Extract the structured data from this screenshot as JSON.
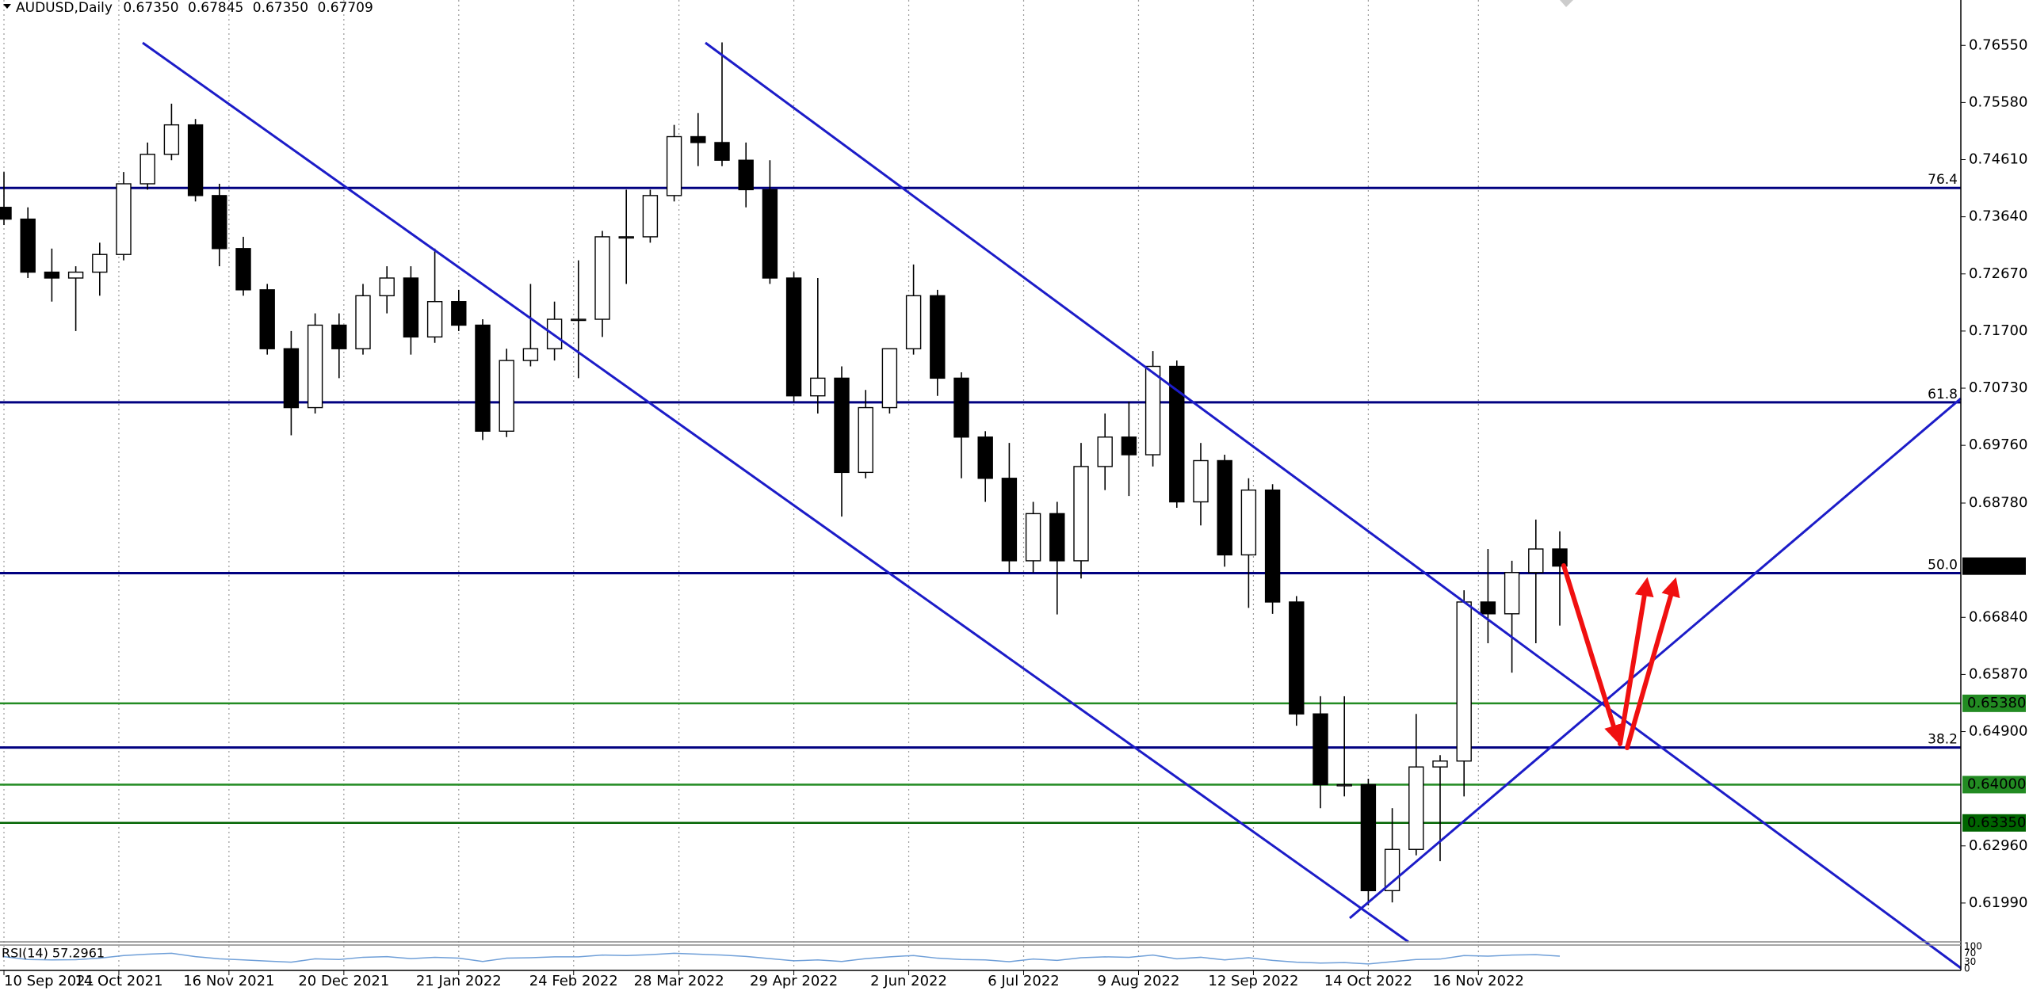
{
  "chart_data": {
    "type": "candlestick",
    "title": "AUDUSD,Daily",
    "ohlc": [
      {
        "value": 0.6735,
        "label": "0.67350"
      },
      {
        "value": 0.67845,
        "label": "0.67845"
      },
      {
        "value": 0.6735,
        "label": "0.67350"
      },
      {
        "value": 0.67709,
        "label": "0.67709"
      }
    ],
    "x": [
      "2021-09-10",
      "2021-09-17",
      "2021-09-24",
      "2021-10-01",
      "2021-10-08",
      "2021-10-15",
      "2021-10-22",
      "2021-10-29",
      "2021-11-05",
      "2021-11-12",
      "2021-11-19",
      "2021-11-26",
      "2021-12-03",
      "2021-12-10",
      "2021-12-17",
      "2021-12-24",
      "2021-12-31",
      "2022-01-07",
      "2022-01-14",
      "2022-01-21",
      "2022-01-28",
      "2022-02-04",
      "2022-02-11",
      "2022-02-18",
      "2022-02-25",
      "2022-03-04",
      "2022-03-11",
      "2022-03-18",
      "2022-03-25",
      "2022-04-01",
      "2022-04-08",
      "2022-04-15",
      "2022-04-22",
      "2022-04-29",
      "2022-05-06",
      "2022-05-13",
      "2022-05-20",
      "2022-05-27",
      "2022-06-03",
      "2022-06-10",
      "2022-06-17",
      "2022-06-24",
      "2022-07-01",
      "2022-07-08",
      "2022-07-15",
      "2022-07-22",
      "2022-07-29",
      "2022-08-05",
      "2022-08-12",
      "2022-08-19",
      "2022-08-26",
      "2022-09-02",
      "2022-09-09",
      "2022-09-16",
      "2022-09-23",
      "2022-09-30",
      "2022-10-07",
      "2022-10-14",
      "2022-10-21",
      "2022-10-28",
      "2022-11-04",
      "2022-11-11",
      "2022-11-18",
      "2022-11-25",
      "2022-12-02",
      "2022-12-09"
    ],
    "open": [
      0.738,
      0.736,
      0.727,
      0.726,
      0.727,
      0.73,
      0.742,
      0.747,
      0.752,
      0.74,
      0.731,
      0.724,
      0.714,
      0.704,
      0.718,
      0.714,
      0.723,
      0.726,
      0.716,
      0.722,
      0.718,
      0.7,
      0.712,
      0.714,
      0.719,
      0.719,
      0.733,
      0.733,
      0.74,
      0.75,
      0.749,
      0.746,
      0.741,
      0.726,
      0.706,
      0.709,
      0.693,
      0.704,
      0.714,
      0.723,
      0.709,
      0.699,
      0.692,
      0.678,
      0.686,
      0.678,
      0.694,
      0.699,
      0.696,
      0.711,
      0.688,
      0.695,
      0.679,
      0.69,
      0.671,
      0.652,
      0.64,
      0.64,
      0.622,
      0.629,
      0.643,
      0.644,
      0.671,
      0.669,
      0.676,
      0.68
    ],
    "high": [
      0.744,
      0.738,
      0.731,
      0.728,
      0.732,
      0.744,
      0.749,
      0.7556,
      0.753,
      0.742,
      0.733,
      0.725,
      0.717,
      0.72,
      0.72,
      0.725,
      0.728,
      0.728,
      0.731,
      0.724,
      0.719,
      0.714,
      0.725,
      0.722,
      0.729,
      0.734,
      0.741,
      0.741,
      0.752,
      0.754,
      0.766,
      0.749,
      0.746,
      0.727,
      0.726,
      0.711,
      0.707,
      0.714,
      0.7283,
      0.724,
      0.71,
      0.7,
      0.698,
      0.688,
      0.688,
      0.698,
      0.703,
      0.705,
      0.7136,
      0.712,
      0.698,
      0.696,
      0.692,
      0.691,
      0.672,
      0.655,
      0.655,
      0.641,
      0.636,
      0.652,
      0.645,
      0.673,
      0.68,
      0.678,
      0.685,
      0.683
    ],
    "low": [
      0.735,
      0.726,
      0.722,
      0.717,
      0.723,
      0.729,
      0.741,
      0.746,
      0.739,
      0.728,
      0.723,
      0.713,
      0.6993,
      0.703,
      0.709,
      0.713,
      0.72,
      0.713,
      0.715,
      0.717,
      0.6985,
      0.699,
      0.711,
      0.712,
      0.709,
      0.716,
      0.725,
      0.732,
      0.739,
      0.745,
      0.745,
      0.738,
      0.725,
      0.705,
      0.703,
      0.6855,
      0.692,
      0.703,
      0.713,
      0.706,
      0.692,
      0.688,
      0.676,
      0.676,
      0.6689,
      0.675,
      0.69,
      0.689,
      0.694,
      0.687,
      0.684,
      0.677,
      0.67,
      0.669,
      0.65,
      0.636,
      0.638,
      0.6195,
      0.62,
      0.628,
      0.627,
      0.638,
      0.664,
      0.659,
      0.664,
      0.667
    ],
    "close": [
      0.736,
      0.727,
      0.726,
      0.727,
      0.73,
      0.742,
      0.747,
      0.752,
      0.74,
      0.731,
      0.724,
      0.714,
      0.704,
      0.718,
      0.714,
      0.723,
      0.726,
      0.716,
      0.722,
      0.718,
      0.7,
      0.712,
      0.714,
      0.719,
      0.719,
      0.733,
      0.733,
      0.74,
      0.75,
      0.749,
      0.746,
      0.741,
      0.726,
      0.706,
      0.709,
      0.693,
      0.704,
      0.714,
      0.723,
      0.709,
      0.699,
      0.692,
      0.678,
      0.686,
      0.678,
      0.694,
      0.699,
      0.696,
      0.711,
      0.688,
      0.695,
      0.679,
      0.69,
      0.671,
      0.652,
      0.64,
      0.64,
      0.622,
      0.629,
      0.643,
      0.644,
      0.671,
      0.669,
      0.676,
      0.68,
      0.6771
    ],
    "up_color": "#ffffff",
    "down_color": "#000000",
    "ylim": [
      0.6133,
      0.7732
    ],
    "yticks": [
      {
        "value": 0.7655,
        "label": "0.76550"
      },
      {
        "value": 0.7558,
        "label": "0.75580"
      },
      {
        "value": 0.7461,
        "label": "0.74610"
      },
      {
        "value": 0.7364,
        "label": "0.73640"
      },
      {
        "value": 0.7267,
        "label": "0.72670"
      },
      {
        "value": 0.717,
        "label": "0.71700"
      },
      {
        "value": 0.7073,
        "label": "0.70730"
      },
      {
        "value": 0.6976,
        "label": "0.69760"
      },
      {
        "value": 0.6878,
        "label": "0.68780"
      },
      {
        "value": 0.6684,
        "label": "0.66840"
      },
      {
        "value": 0.6587,
        "label": "0.65870"
      },
      {
        "value": 0.649,
        "label": "0.64900"
      },
      {
        "value": 0.6296,
        "label": "0.62960"
      },
      {
        "value": 0.6199,
        "label": "0.61990"
      }
    ],
    "xticks": [
      {
        "value": "2021-09-10",
        "label": "10 Sep 2021"
      },
      {
        "value": "2021-10-14",
        "label": "14 Oct 2021"
      },
      {
        "value": "2021-11-16",
        "label": "16 Nov 2021"
      },
      {
        "value": "2021-12-20",
        "label": "20 Dec 2021"
      },
      {
        "value": "2022-01-21",
        "label": "21 Jan 2022"
      },
      {
        "value": "2022-02-24",
        "label": "24 Feb 2022"
      },
      {
        "value": "2022-03-28",
        "label": "28 Mar 2022"
      },
      {
        "value": "2022-04-29",
        "label": "29 Apr 2022"
      },
      {
        "value": "2022-06-02",
        "label": "2 Jun 2022"
      },
      {
        "value": "2022-07-06",
        "label": "6 Jul 2022"
      },
      {
        "value": "2022-08-09",
        "label": "9 Aug 2022"
      },
      {
        "value": "2022-09-12",
        "label": "12 Sep 2022"
      },
      {
        "value": "2022-10-14",
        "label": "14 Oct 2022"
      },
      {
        "value": "2022-11-16",
        "label": "16 Nov 2022"
      }
    ],
    "grid": true,
    "fib_levels": [
      {
        "label": "76.4",
        "price": 0.7413,
        "color": "#000080"
      },
      {
        "label": "61.8",
        "price": 0.7049,
        "color": "#000080"
      },
      {
        "label": "50.0",
        "price": 0.6759,
        "color": "#000080"
      },
      {
        "label": "38.2",
        "price": 0.6463,
        "color": "#000080"
      }
    ],
    "price_levels": [
      {
        "value": 0.6538,
        "label": "0.65380",
        "color": "#228b22"
      },
      {
        "value": 0.64,
        "label": "0.64000",
        "color": "#228b22"
      },
      {
        "value": 0.6335,
        "label": "0.63350",
        "color": "#006400"
      }
    ],
    "rsi": {
      "title": "RSI(14) 57.2961",
      "color": "#6f9fd8",
      "ylim": [
        0,
        100
      ],
      "yticks": [
        100,
        70,
        30,
        0
      ],
      "values": [
        55,
        42,
        40,
        41,
        48,
        60,
        66,
        70,
        55,
        45,
        40,
        35,
        30,
        45,
        42,
        52,
        55,
        46,
        52,
        48,
        33,
        48,
        50,
        54,
        54,
        62,
        60,
        64,
        70,
        66,
        62,
        56,
        46,
        36,
        40,
        33,
        46,
        54,
        60,
        48,
        42,
        40,
        32,
        44,
        38,
        50,
        54,
        52,
        62,
        45,
        52,
        40,
        50,
        38,
        30,
        26,
        28,
        22,
        32,
        42,
        44,
        60,
        57,
        62,
        64,
        57
      ]
    }
  }
}
